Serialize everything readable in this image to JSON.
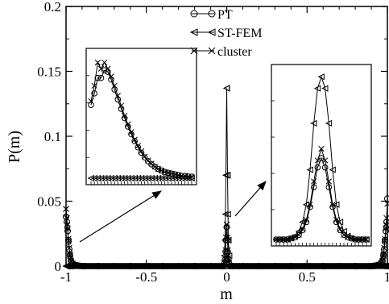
{
  "chart_data": {
    "type": "line",
    "xlabel": "m",
    "ylabel": "P(m)",
    "xlim": [
      -1,
      1
    ],
    "ylim": [
      0,
      0.2
    ],
    "xticks": [
      "-1",
      "-0.5",
      "0",
      "0.5",
      "1"
    ],
    "yticks": [
      "0",
      "0.05",
      "0.1",
      "0.15",
      "0.2"
    ],
    "legend_position": "top-center",
    "series": [
      {
        "name": "PT",
        "marker": "circle",
        "x": [
          -1.0,
          -0.995,
          -0.99,
          -0.985,
          -0.98,
          -0.975,
          -0.97,
          -0.96,
          -0.95,
          -0.9,
          -0.8,
          -0.6,
          -0.4,
          -0.2,
          -0.02,
          -0.01,
          -0.005,
          0.0,
          0.005,
          0.01,
          0.02,
          0.2,
          0.4,
          0.6,
          0.8,
          0.9,
          0.95,
          0.96,
          0.97,
          0.975,
          0.98,
          0.985,
          0.99,
          0.995,
          1.0
        ],
        "y": [
          0.038,
          0.034,
          0.027,
          0.02,
          0.013,
          0.008,
          0.004,
          0.002,
          0.001,
          0.0,
          0.0,
          0.0,
          0.0,
          0.0,
          0.0,
          0.005,
          0.02,
          0.03,
          0.02,
          0.005,
          0.0,
          0.0,
          0.0,
          0.0,
          0.0,
          0.0,
          0.001,
          0.002,
          0.004,
          0.008,
          0.013,
          0.02,
          0.027,
          0.034,
          0.052
        ]
      },
      {
        "name": "ST-FEM",
        "marker": "triangle-left",
        "x": [
          -1.0,
          -0.995,
          -0.99,
          -0.98,
          -0.97,
          -0.9,
          -0.5,
          -0.02,
          -0.01,
          -0.005,
          0.0,
          0.005,
          0.01,
          0.02,
          0.5,
          0.9,
          0.97,
          0.98,
          0.99,
          0.995,
          1.0
        ],
        "y": [
          0.0,
          0.0,
          0.0,
          0.0,
          0.0,
          0.0,
          0.0,
          0.0,
          0.02,
          0.07,
          0.137,
          0.07,
          0.02,
          0.0,
          0.0,
          0.0,
          0.0,
          0.0,
          0.0,
          0.0,
          0.0
        ]
      },
      {
        "name": "cluster",
        "marker": "x",
        "x": [
          -1.0,
          -0.995,
          -0.99,
          -0.985,
          -0.98,
          -0.975,
          -0.97,
          -0.96,
          -0.95,
          -0.9,
          -0.5,
          -0.02,
          -0.01,
          -0.005,
          0.0,
          0.005,
          0.01,
          0.02,
          0.5,
          0.9,
          0.95,
          0.96,
          0.97,
          0.975,
          0.98,
          0.985,
          0.99,
          0.995,
          1.0
        ],
        "y": [
          0.044,
          0.037,
          0.029,
          0.021,
          0.014,
          0.008,
          0.004,
          0.002,
          0.001,
          0.0,
          0.0,
          0.0,
          0.006,
          0.022,
          0.032,
          0.022,
          0.006,
          0.0,
          0.0,
          0.0,
          0.001,
          0.002,
          0.004,
          0.008,
          0.014,
          0.021,
          0.029,
          0.037,
          0.048
        ]
      }
    ],
    "insets": [
      {
        "name": "left-peak-zoom",
        "series": {
          "PT": [
            0.095,
            0.11,
            0.13,
            0.13,
            0.14,
            0.138,
            0.128,
            0.115,
            0.102,
            0.09,
            0.078,
            0.067,
            0.057,
            0.048,
            0.04,
            0.033,
            0.027,
            0.022,
            0.018,
            0.015,
            0.012,
            0.01,
            0.008,
            0.007,
            0.006,
            0.005,
            0.004,
            0.003,
            0.003,
            0.002,
            0.002
          ],
          "ST-FEM": [
            0.0,
            0.0,
            0.0,
            0.0,
            0.0,
            0.0,
            0.0,
            0.0,
            0.0,
            0.0,
            0.0,
            0.0,
            0.0,
            0.0,
            0.0,
            0.0,
            0.0,
            0.0,
            0.0,
            0.0,
            0.0,
            0.0,
            0.0,
            0.0,
            0.0,
            0.0,
            0.0,
            0.0,
            0.0,
            0.0,
            0.0
          ],
          "cluster": [
            0.1,
            0.12,
            0.15,
            0.142,
            0.15,
            0.142,
            0.132,
            0.12,
            0.107,
            0.094,
            0.081,
            0.07,
            0.06,
            0.05,
            0.042,
            0.035,
            0.028,
            0.023,
            0.019,
            0.015,
            0.012,
            0.01,
            0.008,
            0.007,
            0.006,
            0.005,
            0.004,
            0.003,
            0.003,
            0.002,
            0.002
          ]
        }
      },
      {
        "name": "center-peak-zoom",
        "series": {
          "PT": [
            0.0,
            0.0,
            0.0,
            0.0,
            0.001,
            0.002,
            0.004,
            0.008,
            0.015,
            0.028,
            0.045,
            0.062,
            0.07,
            0.062,
            0.045,
            0.028,
            0.015,
            0.008,
            0.004,
            0.002,
            0.001,
            0.0,
            0.0,
            0.0,
            0.0
          ],
          "ST-FEM": [
            0.0,
            0.0,
            0.0,
            0.0,
            0.001,
            0.003,
            0.007,
            0.015,
            0.03,
            0.06,
            0.1,
            0.13,
            0.14,
            0.13,
            0.1,
            0.06,
            0.03,
            0.015,
            0.007,
            0.003,
            0.001,
            0.0,
            0.0,
            0.0,
            0.0
          ],
          "cluster": [
            0.0,
            0.0,
            0.0,
            0.0,
            0.001,
            0.002,
            0.004,
            0.009,
            0.017,
            0.03,
            0.05,
            0.068,
            0.078,
            0.068,
            0.05,
            0.03,
            0.017,
            0.009,
            0.004,
            0.002,
            0.001,
            0.0,
            0.0,
            0.0,
            0.0
          ]
        }
      }
    ]
  }
}
